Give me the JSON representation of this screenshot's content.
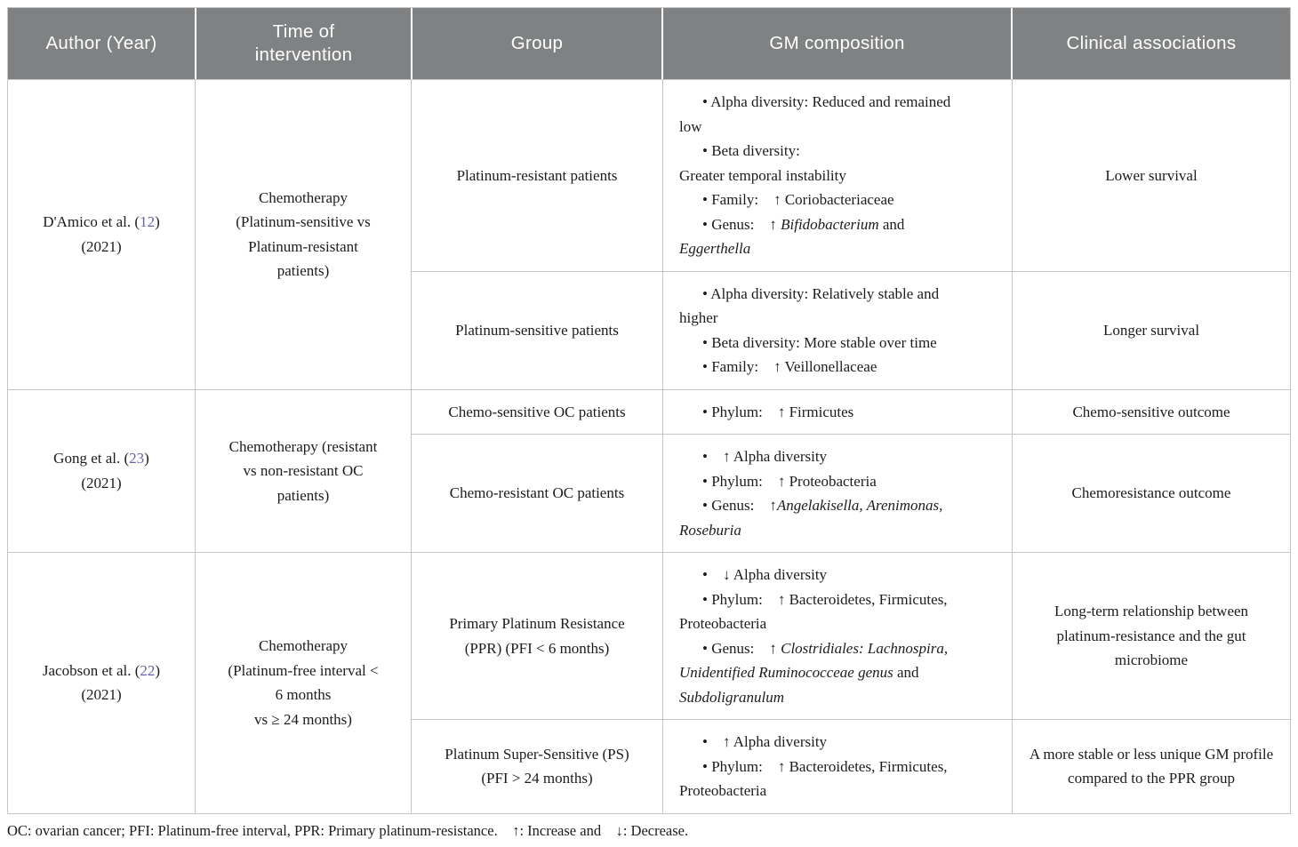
{
  "colors": {
    "header_bg": "#7f8182",
    "header_text": "#ffffff",
    "border": "#c6c6c6",
    "body_text": "#1c1c1c",
    "citation_link": "#6464a8"
  },
  "header": {
    "columns": [
      "Author (Year)",
      "Time of\nintervention",
      "Group",
      "GM composition",
      "Clinical associations"
    ]
  },
  "rows": [
    {
      "author": {
        "pre": "D'Amico et al. (",
        "cite": "12",
        "post": ")",
        "year": "(2021)"
      },
      "time": "Chemotherapy\n(Platinum-sensitive vs\nPlatinum-resistant\npatients)",
      "subrows": [
        {
          "group": "Platinum-resistant patients",
          "gm": [
            [
              {
                "t": "Alpha diversity: Reduced and remained\nlow"
              }
            ],
            [
              {
                "t": "Beta diversity:\nGreater temporal instability"
              }
            ],
            [
              {
                "t": "Family:    ↑ Coriobacteriaceae"
              }
            ],
            [
              {
                "t": "Genus:    ↑ "
              },
              {
                "t": "Bifidobacterium",
                "i": true
              },
              {
                "t": " and\n"
              },
              {
                "t": "Eggerthella",
                "i": true
              }
            ]
          ],
          "clinical": "Lower survival"
        },
        {
          "group": "Platinum-sensitive patients",
          "gm": [
            [
              {
                "t": "Alpha diversity: Relatively stable and\nhigher"
              }
            ],
            [
              {
                "t": "Beta diversity: More stable over time"
              }
            ],
            [
              {
                "t": "Family:    ↑ Veillonellaceae"
              }
            ]
          ],
          "clinical": "Longer survival"
        }
      ]
    },
    {
      "author": {
        "pre": "Gong et al. (",
        "cite": "23",
        "post": ")",
        "year": "(2021)"
      },
      "time": "Chemotherapy (resistant\nvs non-resistant OC\npatients)",
      "subrows": [
        {
          "group": "Chemo-sensitive OC patients",
          "gm": [
            [
              {
                "t": "Phylum:    ↑ Firmicutes"
              }
            ]
          ],
          "clinical": "Chemo-sensitive outcome"
        },
        {
          "group": "Chemo-resistant OC patients",
          "gm": [
            [
              {
                "t": "   ↑ Alpha diversity"
              }
            ],
            [
              {
                "t": "Phylum:    ↑ Proteobacteria"
              }
            ],
            [
              {
                "t": "Genus:    ↑"
              },
              {
                "t": "Angelakisella, Arenimonas,\nRoseburia",
                "i": true
              }
            ]
          ],
          "clinical": "Chemoresistance outcome"
        }
      ]
    },
    {
      "author": {
        "pre": "Jacobson et al. (",
        "cite": "22",
        "post": ")",
        "year": "(2021)"
      },
      "time": "Chemotherapy\n(Platinum-free interval <\n6 months\nvs ≥ 24 months)",
      "subrows": [
        {
          "group": "Primary Platinum Resistance\n(PPR) (PFI < 6 months)",
          "gm": [
            [
              {
                "t": "   ↓ Alpha diversity"
              }
            ],
            [
              {
                "t": "Phylum:    ↑ Bacteroidetes, Firmicutes,\nProteobacteria"
              }
            ],
            [
              {
                "t": "Genus:    ↑ "
              },
              {
                "t": "Clostridiales: Lachnospira,\nUnidentified Ruminococceae genus",
                "i": true
              },
              {
                "t": " and\n"
              },
              {
                "t": "Subdoligranulum",
                "i": true
              }
            ]
          ],
          "clinical": "Long-term relationship between platinum-resistance and the gut microbiome"
        },
        {
          "group": "Platinum Super-Sensitive (PS)\n(PFI > 24 months)",
          "gm": [
            [
              {
                "t": "   ↑ Alpha diversity"
              }
            ],
            [
              {
                "t": "Phylum:    ↑ Bacteroidetes, Firmicutes,\nProteobacteria"
              }
            ]
          ],
          "clinical": "A more stable or less unique GM profile compared to the PPR group"
        }
      ]
    }
  ],
  "footnote": "OC: ovarian cancer; PFI: Platinum-free interval, PPR: Primary platinum-resistance.    ↑: Increase and    ↓: Decrease."
}
